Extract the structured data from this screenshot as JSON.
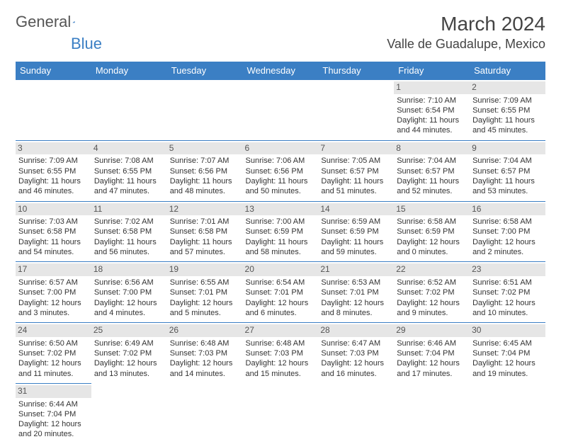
{
  "logo": {
    "text1": "General",
    "text2": "Blue"
  },
  "title": {
    "month": "March 2024",
    "location": "Valle de Guadalupe, Mexico"
  },
  "colors": {
    "accent": "#3b7fc4",
    "dayband": "#e6e6e6",
    "bg": "#ffffff",
    "text": "#333333"
  },
  "weekdays": [
    "Sunday",
    "Monday",
    "Tuesday",
    "Wednesday",
    "Thursday",
    "Friday",
    "Saturday"
  ],
  "layout": {
    "leading_blanks": 5,
    "days_in_month": 31
  },
  "days": [
    {
      "n": "1",
      "sunrise": "Sunrise: 7:10 AM",
      "sunset": "Sunset: 6:54 PM",
      "day1": "Daylight: 11 hours",
      "day2": "and 44 minutes."
    },
    {
      "n": "2",
      "sunrise": "Sunrise: 7:09 AM",
      "sunset": "Sunset: 6:55 PM",
      "day1": "Daylight: 11 hours",
      "day2": "and 45 minutes."
    },
    {
      "n": "3",
      "sunrise": "Sunrise: 7:09 AM",
      "sunset": "Sunset: 6:55 PM",
      "day1": "Daylight: 11 hours",
      "day2": "and 46 minutes."
    },
    {
      "n": "4",
      "sunrise": "Sunrise: 7:08 AM",
      "sunset": "Sunset: 6:55 PM",
      "day1": "Daylight: 11 hours",
      "day2": "and 47 minutes."
    },
    {
      "n": "5",
      "sunrise": "Sunrise: 7:07 AM",
      "sunset": "Sunset: 6:56 PM",
      "day1": "Daylight: 11 hours",
      "day2": "and 48 minutes."
    },
    {
      "n": "6",
      "sunrise": "Sunrise: 7:06 AM",
      "sunset": "Sunset: 6:56 PM",
      "day1": "Daylight: 11 hours",
      "day2": "and 50 minutes."
    },
    {
      "n": "7",
      "sunrise": "Sunrise: 7:05 AM",
      "sunset": "Sunset: 6:57 PM",
      "day1": "Daylight: 11 hours",
      "day2": "and 51 minutes."
    },
    {
      "n": "8",
      "sunrise": "Sunrise: 7:04 AM",
      "sunset": "Sunset: 6:57 PM",
      "day1": "Daylight: 11 hours",
      "day2": "and 52 minutes."
    },
    {
      "n": "9",
      "sunrise": "Sunrise: 7:04 AM",
      "sunset": "Sunset: 6:57 PM",
      "day1": "Daylight: 11 hours",
      "day2": "and 53 minutes."
    },
    {
      "n": "10",
      "sunrise": "Sunrise: 7:03 AM",
      "sunset": "Sunset: 6:58 PM",
      "day1": "Daylight: 11 hours",
      "day2": "and 54 minutes."
    },
    {
      "n": "11",
      "sunrise": "Sunrise: 7:02 AM",
      "sunset": "Sunset: 6:58 PM",
      "day1": "Daylight: 11 hours",
      "day2": "and 56 minutes."
    },
    {
      "n": "12",
      "sunrise": "Sunrise: 7:01 AM",
      "sunset": "Sunset: 6:58 PM",
      "day1": "Daylight: 11 hours",
      "day2": "and 57 minutes."
    },
    {
      "n": "13",
      "sunrise": "Sunrise: 7:00 AM",
      "sunset": "Sunset: 6:59 PM",
      "day1": "Daylight: 11 hours",
      "day2": "and 58 minutes."
    },
    {
      "n": "14",
      "sunrise": "Sunrise: 6:59 AM",
      "sunset": "Sunset: 6:59 PM",
      "day1": "Daylight: 11 hours",
      "day2": "and 59 minutes."
    },
    {
      "n": "15",
      "sunrise": "Sunrise: 6:58 AM",
      "sunset": "Sunset: 6:59 PM",
      "day1": "Daylight: 12 hours",
      "day2": "and 0 minutes."
    },
    {
      "n": "16",
      "sunrise": "Sunrise: 6:58 AM",
      "sunset": "Sunset: 7:00 PM",
      "day1": "Daylight: 12 hours",
      "day2": "and 2 minutes."
    },
    {
      "n": "17",
      "sunrise": "Sunrise: 6:57 AM",
      "sunset": "Sunset: 7:00 PM",
      "day1": "Daylight: 12 hours",
      "day2": "and 3 minutes."
    },
    {
      "n": "18",
      "sunrise": "Sunrise: 6:56 AM",
      "sunset": "Sunset: 7:00 PM",
      "day1": "Daylight: 12 hours",
      "day2": "and 4 minutes."
    },
    {
      "n": "19",
      "sunrise": "Sunrise: 6:55 AM",
      "sunset": "Sunset: 7:01 PM",
      "day1": "Daylight: 12 hours",
      "day2": "and 5 minutes."
    },
    {
      "n": "20",
      "sunrise": "Sunrise: 6:54 AM",
      "sunset": "Sunset: 7:01 PM",
      "day1": "Daylight: 12 hours",
      "day2": "and 6 minutes."
    },
    {
      "n": "21",
      "sunrise": "Sunrise: 6:53 AM",
      "sunset": "Sunset: 7:01 PM",
      "day1": "Daylight: 12 hours",
      "day2": "and 8 minutes."
    },
    {
      "n": "22",
      "sunrise": "Sunrise: 6:52 AM",
      "sunset": "Sunset: 7:02 PM",
      "day1": "Daylight: 12 hours",
      "day2": "and 9 minutes."
    },
    {
      "n": "23",
      "sunrise": "Sunrise: 6:51 AM",
      "sunset": "Sunset: 7:02 PM",
      "day1": "Daylight: 12 hours",
      "day2": "and 10 minutes."
    },
    {
      "n": "24",
      "sunrise": "Sunrise: 6:50 AM",
      "sunset": "Sunset: 7:02 PM",
      "day1": "Daylight: 12 hours",
      "day2": "and 11 minutes."
    },
    {
      "n": "25",
      "sunrise": "Sunrise: 6:49 AM",
      "sunset": "Sunset: 7:02 PM",
      "day1": "Daylight: 12 hours",
      "day2": "and 13 minutes."
    },
    {
      "n": "26",
      "sunrise": "Sunrise: 6:48 AM",
      "sunset": "Sunset: 7:03 PM",
      "day1": "Daylight: 12 hours",
      "day2": "and 14 minutes."
    },
    {
      "n": "27",
      "sunrise": "Sunrise: 6:48 AM",
      "sunset": "Sunset: 7:03 PM",
      "day1": "Daylight: 12 hours",
      "day2": "and 15 minutes."
    },
    {
      "n": "28",
      "sunrise": "Sunrise: 6:47 AM",
      "sunset": "Sunset: 7:03 PM",
      "day1": "Daylight: 12 hours",
      "day2": "and 16 minutes."
    },
    {
      "n": "29",
      "sunrise": "Sunrise: 6:46 AM",
      "sunset": "Sunset: 7:04 PM",
      "day1": "Daylight: 12 hours",
      "day2": "and 17 minutes."
    },
    {
      "n": "30",
      "sunrise": "Sunrise: 6:45 AM",
      "sunset": "Sunset: 7:04 PM",
      "day1": "Daylight: 12 hours",
      "day2": "and 19 minutes."
    },
    {
      "n": "31",
      "sunrise": "Sunrise: 6:44 AM",
      "sunset": "Sunset: 7:04 PM",
      "day1": "Daylight: 12 hours",
      "day2": "and 20 minutes."
    }
  ]
}
